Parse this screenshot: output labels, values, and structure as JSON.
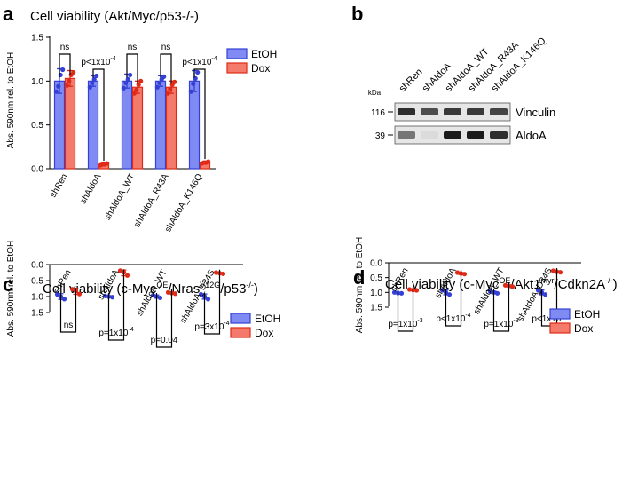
{
  "colors": {
    "etoh_fill": "#7f8bf2",
    "etoh_edge": "#3440d6",
    "dox_fill": "#f47b6b",
    "dox_edge": "#e02a17",
    "axis": "#000000",
    "blot_bg": "#e6e6e6",
    "band": "#1a1a1a"
  },
  "blot": {
    "panel_label": "b",
    "kda_label": "kDa",
    "lanes": [
      "shRen",
      "shAldoA",
      "shAldoA_WT",
      "shAldoA_R43A",
      "shAldoA_K146Q"
    ],
    "rows": [
      {
        "name": "Vinculin",
        "kda": "116",
        "intensity": [
          0.9,
          0.75,
          0.85,
          0.85,
          0.8
        ]
      },
      {
        "name": "AldoA",
        "kda": "39",
        "intensity": [
          0.55,
          0.05,
          1.0,
          1.0,
          0.9
        ]
      }
    ]
  },
  "chart_data": [
    {
      "type": "bar",
      "panel_label": "a",
      "title": "Cell viability (Akt/Myc/p53-/-)",
      "title_parts": [
        {
          "text": "Cell viability (Akt/Myc/p53-/-)"
        }
      ],
      "xlabel": "",
      "ylabel": "Abs. 590nm rel. to EtOH",
      "ylim": [
        0,
        1.5
      ],
      "yticks": [
        0,
        0.5,
        1.0,
        1.5
      ],
      "ytick_labels": [
        "0.0",
        "0.5",
        "1.0",
        "1.5"
      ],
      "legend_position": "top-right",
      "categories": [
        "shRen",
        "shAldoA",
        "shAldoA_WT",
        "shAldoA_R43A",
        "shAldoA_K146Q"
      ],
      "series": [
        {
          "name": "EtOH",
          "values": [
            1.0,
            1.0,
            1.0,
            1.0,
            1.0
          ],
          "errors": [
            0.14,
            0.06,
            0.08,
            0.06,
            0.12
          ],
          "points": [
            [
              0.88,
              0.94,
              1.07,
              1.13
            ],
            [
              0.93,
              0.98,
              1.02,
              1.06
            ],
            [
              0.92,
              0.98,
              1.02,
              1.07
            ],
            [
              0.93,
              0.98,
              1.02,
              1.05
            ],
            [
              0.88,
              0.97,
              1.03,
              1.1
            ]
          ]
        },
        {
          "name": "Dox",
          "values": [
            1.03,
            0.05,
            0.93,
            0.93,
            0.07
          ],
          "errors": [
            0.09,
            0.01,
            0.07,
            0.07,
            0.01
          ],
          "points": [
            [
              0.95,
              1.0,
              1.07,
              1.1
            ],
            [
              0.04,
              0.05,
              0.05,
              0.06
            ],
            [
              0.86,
              0.9,
              0.96,
              1.0
            ],
            [
              0.86,
              0.91,
              0.96,
              0.99
            ],
            [
              0.06,
              0.07,
              0.07,
              0.08
            ]
          ]
        }
      ],
      "annotations": [
        {
          "group": 0,
          "text": "ns"
        },
        {
          "group": 1,
          "text": "p<1x10",
          "sup": "-4"
        },
        {
          "group": 2,
          "text": "ns"
        },
        {
          "group": 3,
          "text": "ns"
        },
        {
          "group": 4,
          "text": "p<1x10",
          "sup": "-4"
        }
      ]
    },
    {
      "type": "bar",
      "panel_label": "c",
      "title": "Cell viability (c-MycOE/NrasV12G/p53-/-)",
      "title_parts": [
        {
          "text": "Cell viability (c-Myc"
        },
        {
          "text": "OE",
          "sup": true
        },
        {
          "text": "/Nras"
        },
        {
          "text": "V12G",
          "sup": true
        },
        {
          "text": "/p53"
        },
        {
          "text": "-/-",
          "sup": true
        },
        {
          "text": ")"
        }
      ],
      "xlabel": "",
      "ylabel": "Abs. 590nm rel. to EtOH",
      "ylim": [
        0,
        1.5
      ],
      "yticks": [
        0,
        0.5,
        1.0,
        1.5
      ],
      "ytick_labels": [
        "0.0",
        "0.5",
        "1.0",
        "1.5"
      ],
      "legend_position": "top-right",
      "categories": [
        "shRen",
        "shAldoA",
        "shAldoA_WT",
        "shAldoA_D34S"
      ],
      "series": [
        {
          "name": "EtOH",
          "values": [
            1.0,
            1.0,
            1.0,
            1.0
          ],
          "errors": [
            0.09,
            0.02,
            0.05,
            0.08
          ],
          "points": [
            [
              0.93,
              1.0,
              1.08
            ],
            [
              0.98,
              1.0,
              1.02
            ],
            [
              0.96,
              1.0,
              1.04
            ],
            [
              0.93,
              1.0,
              1.08
            ]
          ]
        },
        {
          "name": "Dox",
          "values": [
            0.84,
            0.26,
            0.89,
            0.27
          ],
          "errors": [
            0.09,
            0.09,
            0.02,
            0.02
          ],
          "points": [
            [
              0.77,
              0.83,
              0.92
            ],
            [
              0.19,
              0.24,
              0.34
            ],
            [
              0.87,
              0.89,
              0.91
            ],
            [
              0.25,
              0.27,
              0.29
            ]
          ]
        }
      ],
      "annotations": [
        {
          "group": 0,
          "text": "ns"
        },
        {
          "group": 1,
          "text": "p=1x10",
          "sup": "-4"
        },
        {
          "group": 2,
          "text": "p=0.04"
        },
        {
          "group": 3,
          "text": "p=3x10",
          "sup": "-4"
        }
      ]
    },
    {
      "type": "bar",
      "panel_label": "d",
      "title": "Cell viability (c-MycOE/Akt1myr/Cdkn2A-/-)",
      "title_parts": [
        {
          "text": "Cell viability (c-Myc"
        },
        {
          "text": "OE",
          "sup": true
        },
        {
          "text": "/Akt1"
        },
        {
          "text": "myr",
          "sup": true
        },
        {
          "text": "/Cdkn2A"
        },
        {
          "text": "-/-",
          "sup": true
        },
        {
          "text": ")"
        }
      ],
      "xlabel": "",
      "ylabel": "Abs. 590nm rel. to EtOH",
      "ylim": [
        0,
        1.5
      ],
      "yticks": [
        0,
        0.5,
        1.0,
        1.5
      ],
      "ytick_labels": [
        "0.0",
        "0.5",
        "1.0",
        "1.5"
      ],
      "legend_position": "top-right",
      "categories": [
        "shRen",
        "shAldoA",
        "shAldoA_WT",
        "shAldoA_D34S"
      ],
      "series": [
        {
          "name": "EtOH",
          "values": [
            1.02,
            1.0,
            1.0,
            1.0
          ],
          "errors": [
            0.02,
            0.08,
            0.04,
            0.08
          ],
          "points": [
            [
              1.0,
              1.02,
              1.03
            ],
            [
              0.93,
              1.0,
              1.07
            ],
            [
              0.97,
              1.0,
              1.03
            ],
            [
              0.93,
              1.0,
              1.07
            ]
          ]
        },
        {
          "name": "Dox",
          "values": [
            0.92,
            0.36,
            0.78,
            0.3
          ],
          "errors": [
            0.02,
            0.03,
            0.03,
            0.03
          ],
          "points": [
            [
              0.9,
              0.92,
              0.93
            ],
            [
              0.33,
              0.36,
              0.38
            ],
            [
              0.76,
              0.78,
              0.8
            ],
            [
              0.27,
              0.3,
              0.32
            ]
          ]
        }
      ],
      "annotations": [
        {
          "group": 0,
          "text": "p=1x10",
          "sup": "-3"
        },
        {
          "group": 1,
          "text": "p<1x10",
          "sup": "-4"
        },
        {
          "group": 2,
          "text": "p=1x10",
          "sup": "-3"
        },
        {
          "group": 3,
          "text": "p<1x10",
          "sup": "-4"
        }
      ]
    }
  ]
}
